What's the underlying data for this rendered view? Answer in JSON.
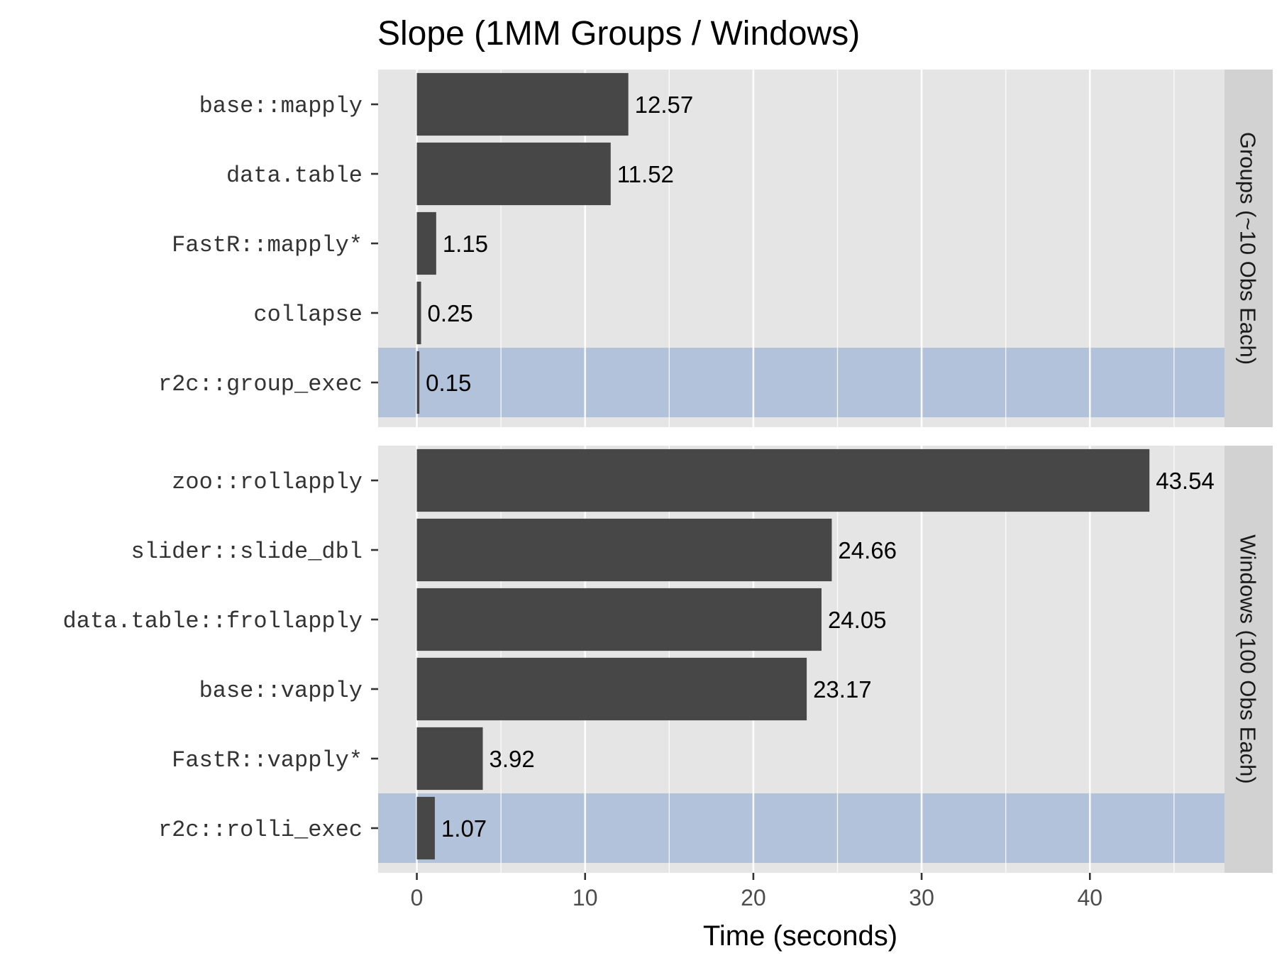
{
  "chart_data": {
    "type": "bar",
    "orientation": "horizontal",
    "title": "Slope (1MM Groups / Windows)",
    "xlabel": "Time (seconds)",
    "ylabel": "",
    "xlim": [
      -2.3,
      48
    ],
    "xticks": [
      0,
      10,
      20,
      30,
      40
    ],
    "grid": true,
    "bar_color": "#474747",
    "highlight_color": "#b3c2db",
    "panel_color": "#e5e5e5",
    "strip_color": "#d2d2d2",
    "panels": [
      {
        "strip_label": "Groups (~10 Obs Each)",
        "categories": [
          "base::mapply",
          "data.table",
          "FastR::mapply*",
          "collapse",
          "r2c::group_exec"
        ],
        "values": [
          12.57,
          11.52,
          1.15,
          0.25,
          0.15
        ],
        "value_labels": [
          "12.57",
          "11.52",
          "1.15",
          "0.25",
          "0.15"
        ],
        "highlighted": [
          "r2c::group_exec"
        ]
      },
      {
        "strip_label": "Windows (100 Obs Each)",
        "categories": [
          "zoo::rollapply",
          "slider::slide_dbl",
          "data.table::frollapply",
          "base::vapply",
          "FastR::vapply*",
          "r2c::rolli_exec"
        ],
        "values": [
          43.54,
          24.66,
          24.05,
          23.17,
          3.92,
          1.07
        ],
        "value_labels": [
          "43.54",
          "24.66",
          "24.05",
          "23.17",
          "3.92",
          "1.07"
        ],
        "highlighted": [
          "r2c::rolli_exec"
        ]
      }
    ]
  }
}
